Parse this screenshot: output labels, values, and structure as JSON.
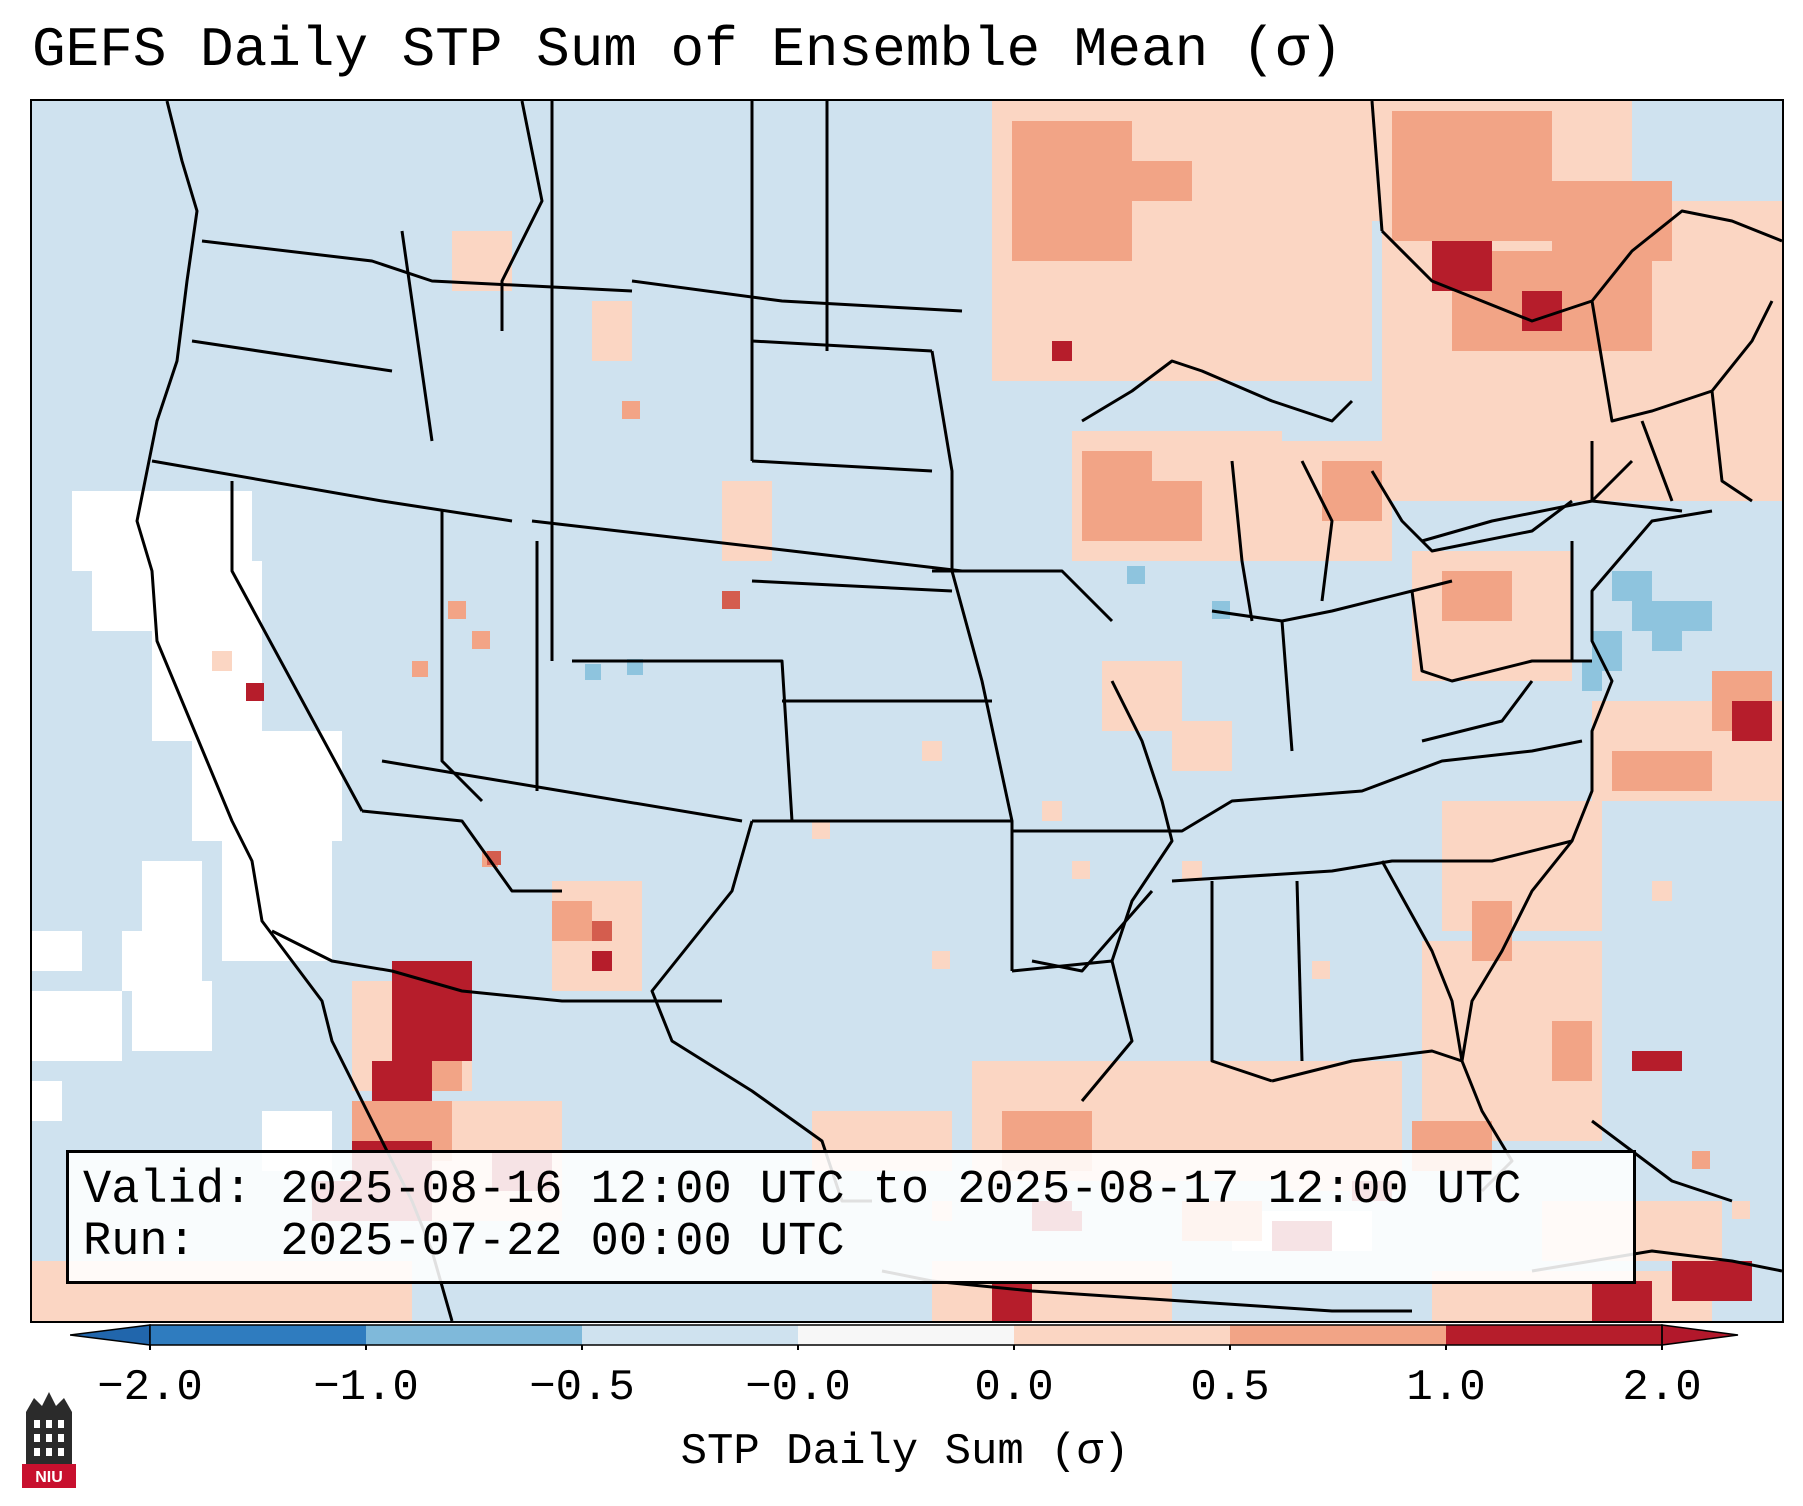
{
  "title": "GEFS Daily STP Sum of Ensemble Mean (σ)",
  "info": {
    "valid_line": "Valid: 2025-08-16 12:00 UTC to 2025-08-17 12:00 UTC",
    "run_line": "Run:   2025-07-22 00:00 UTC"
  },
  "colorbar": {
    "label": "STP Daily Sum (σ)",
    "ticks": [
      "−2.0",
      "−1.0",
      "−0.5",
      "−0.0",
      "0.0",
      "0.5",
      "1.0",
      "2.0"
    ],
    "colors": [
      "#2f7cbf",
      "#7fb9da",
      "#cfe2ef",
      "#f7f7f7",
      "#fbd6c3",
      "#f2a486",
      "#d45d4e",
      "#b61d2b"
    ],
    "under_color": "#2166ac",
    "over_color": "#b2182b"
  },
  "map": {
    "region": "Contiguous United States",
    "background_color": "#cfe2ef"
  },
  "logo": {
    "text": "NIU"
  }
}
